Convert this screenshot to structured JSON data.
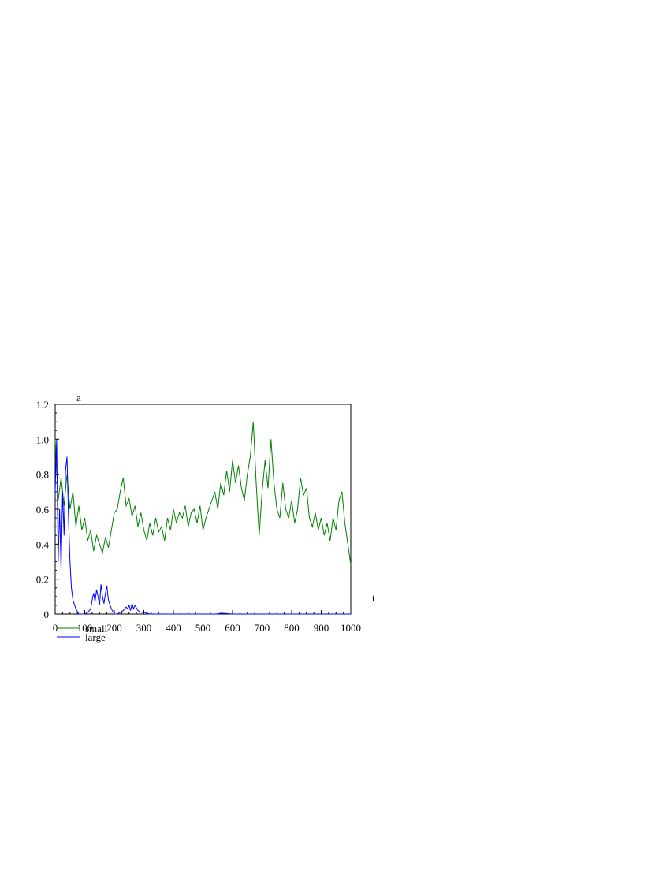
{
  "chart_data": {
    "type": "line",
    "title": "",
    "xlabel": "t",
    "ylabel": "a",
    "xlim": [
      0,
      1000
    ],
    "ylim": [
      0,
      1.2
    ],
    "x_ticks": [
      "0",
      "100",
      "200",
      "300",
      "400",
      "500",
      "600",
      "700",
      "800",
      "900",
      "1000"
    ],
    "y_ticks": [
      "0",
      "0.2",
      "0.4",
      "0.6",
      "0.8",
      "1.0",
      "1.2"
    ],
    "grid": false,
    "legend_position": "bottom-left",
    "series": [
      {
        "name": "small",
        "color": "#008000",
        "x": [
          0,
          10,
          20,
          30,
          40,
          50,
          60,
          70,
          80,
          90,
          100,
          110,
          120,
          130,
          140,
          150,
          160,
          170,
          180,
          190,
          200,
          210,
          220,
          230,
          240,
          250,
          260,
          270,
          280,
          290,
          300,
          310,
          320,
          330,
          340,
          350,
          360,
          370,
          380,
          390,
          400,
          410,
          420,
          430,
          440,
          450,
          460,
          470,
          480,
          490,
          500,
          510,
          520,
          530,
          540,
          550,
          560,
          570,
          580,
          590,
          600,
          610,
          620,
          630,
          640,
          650,
          660,
          670,
          680,
          690,
          700,
          710,
          720,
          730,
          740,
          750,
          760,
          770,
          780,
          790,
          800,
          810,
          820,
          830,
          840,
          850,
          860,
          870,
          880,
          890,
          900,
          910,
          920,
          930,
          940,
          950,
          960,
          970,
          980,
          990,
          1000
        ],
        "values": [
          1.0,
          0.65,
          0.78,
          0.62,
          0.8,
          0.6,
          0.7,
          0.5,
          0.62,
          0.48,
          0.55,
          0.42,
          0.48,
          0.36,
          0.45,
          0.4,
          0.35,
          0.44,
          0.38,
          0.48,
          0.58,
          0.6,
          0.7,
          0.78,
          0.62,
          0.66,
          0.56,
          0.62,
          0.5,
          0.58,
          0.48,
          0.42,
          0.52,
          0.45,
          0.55,
          0.47,
          0.5,
          0.42,
          0.55,
          0.48,
          0.6,
          0.52,
          0.58,
          0.55,
          0.62,
          0.5,
          0.58,
          0.6,
          0.52,
          0.62,
          0.48,
          0.55,
          0.6,
          0.65,
          0.7,
          0.6,
          0.75,
          0.68,
          0.82,
          0.7,
          0.88,
          0.75,
          0.85,
          0.72,
          0.65,
          0.8,
          0.9,
          1.1,
          0.75,
          0.45,
          0.7,
          0.88,
          0.72,
          1.0,
          0.75,
          0.6,
          0.55,
          0.75,
          0.6,
          0.55,
          0.65,
          0.52,
          0.6,
          0.78,
          0.68,
          0.72,
          0.55,
          0.5,
          0.58,
          0.48,
          0.55,
          0.45,
          0.52,
          0.42,
          0.55,
          0.48,
          0.65,
          0.7,
          0.52,
          0.4,
          0.28
        ]
      },
      {
        "name": "large",
        "color": "#0000ff",
        "x": [
          0,
          5,
          10,
          15,
          20,
          25,
          30,
          35,
          40,
          45,
          50,
          55,
          60,
          70,
          80,
          90,
          100,
          110,
          120,
          125,
          130,
          135,
          140,
          145,
          150,
          155,
          160,
          165,
          170,
          175,
          180,
          190,
          200,
          210,
          220,
          230,
          240,
          245,
          250,
          255,
          260,
          265,
          270,
          280,
          290,
          300,
          320,
          350,
          400,
          500,
          550,
          560,
          600,
          700,
          800,
          900,
          1000
        ],
        "values": [
          0.7,
          1.0,
          0.3,
          0.6,
          0.25,
          0.7,
          0.45,
          0.82,
          0.9,
          0.55,
          0.3,
          0.15,
          0.08,
          0.03,
          0.0,
          0.0,
          0.0,
          0.01,
          0.03,
          0.08,
          0.12,
          0.07,
          0.14,
          0.1,
          0.05,
          0.17,
          0.1,
          0.06,
          0.12,
          0.16,
          0.08,
          0.03,
          0.0,
          0.0,
          0.01,
          0.02,
          0.04,
          0.03,
          0.05,
          0.02,
          0.06,
          0.03,
          0.05,
          0.02,
          0.01,
          0.01,
          0.0,
          0.0,
          0.0,
          0.0,
          0.0,
          0.005,
          0.0,
          0.0,
          0.0,
          0.0,
          0.0
        ]
      }
    ]
  }
}
